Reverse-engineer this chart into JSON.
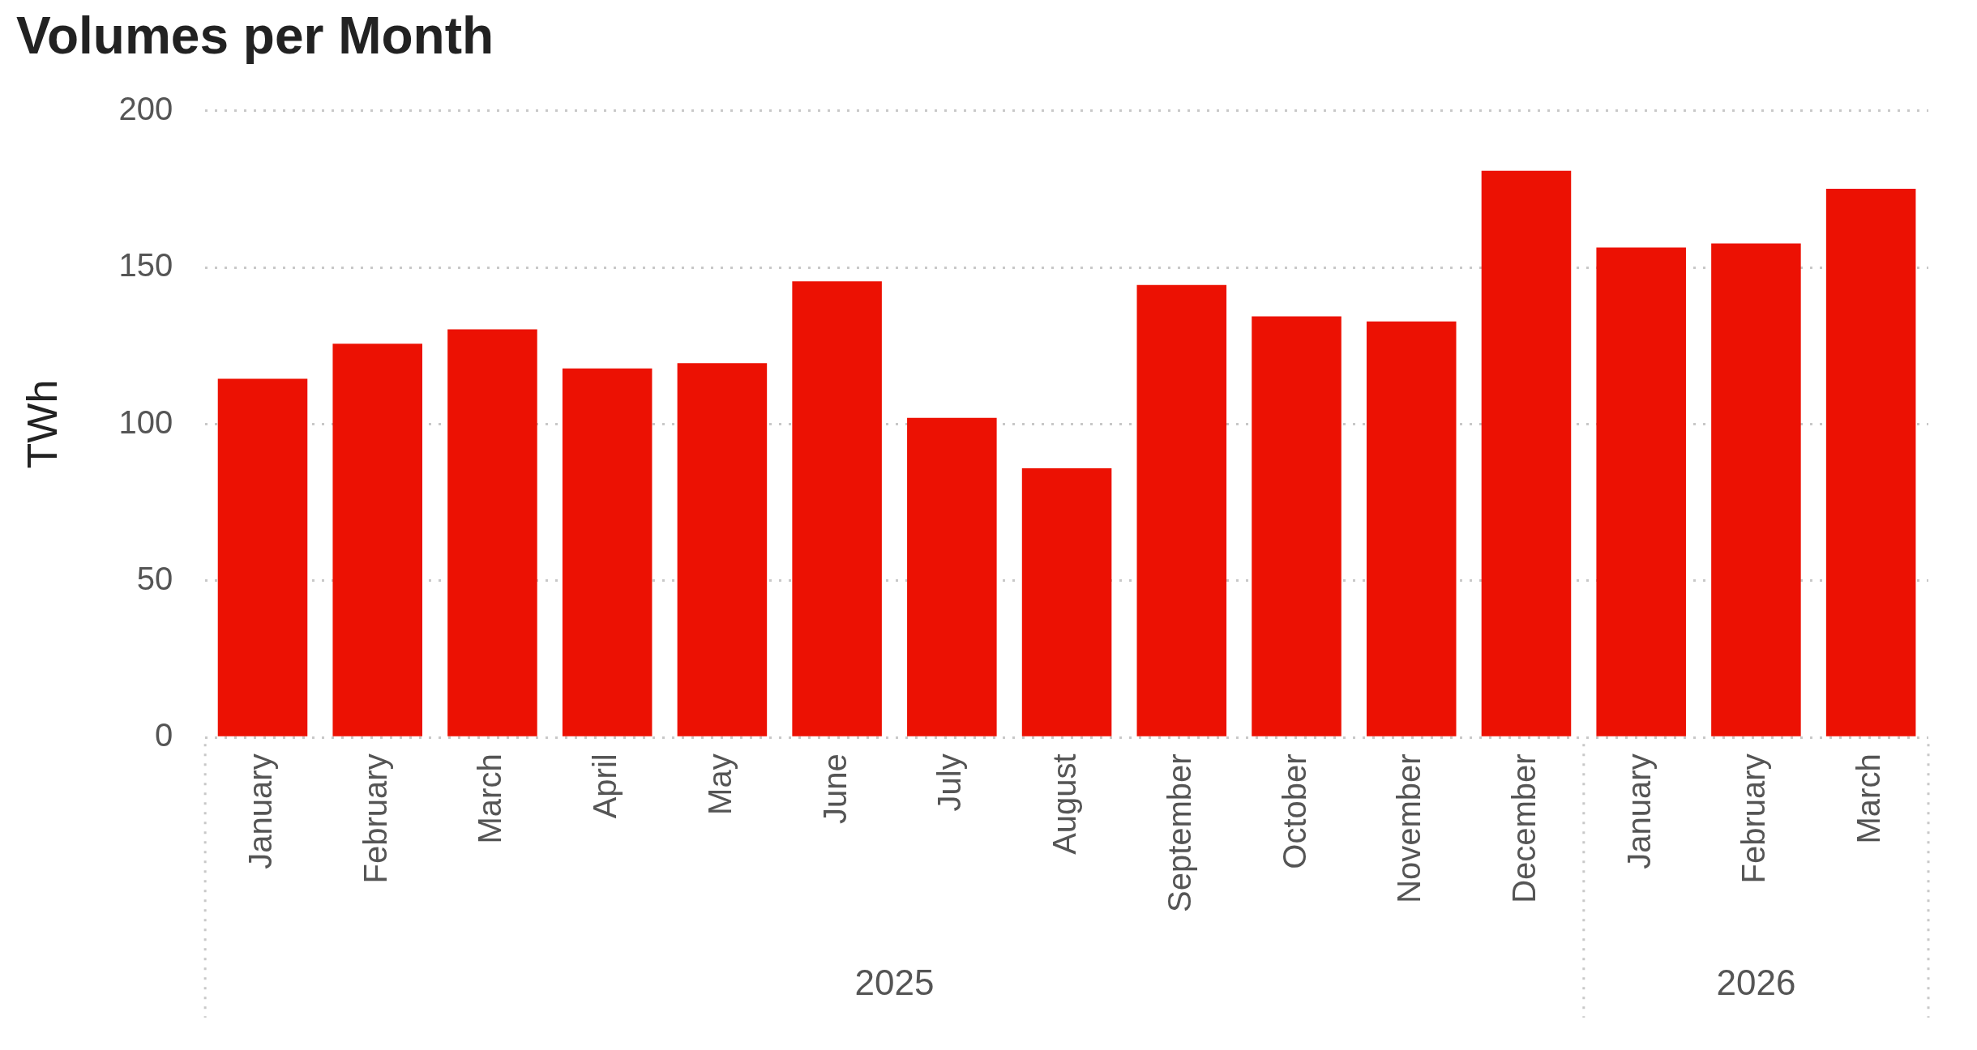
{
  "chart_data": {
    "type": "bar",
    "title": "Volumes per Month",
    "ylabel": "TWh",
    "categories": [
      "January",
      "February",
      "March",
      "April",
      "May",
      "June",
      "July",
      "August",
      "September",
      "October",
      "November",
      "December",
      "January",
      "February",
      "March"
    ],
    "values": [
      114.5,
      125.7,
      130.3,
      117.8,
      119.5,
      145.6,
      102,
      85.9,
      144.4,
      134.4,
      132.8,
      180.9,
      156.4,
      157.7,
      175.1
    ],
    "color": "#ec1103",
    "ylim": [
      0,
      200
    ],
    "yticks": [
      0,
      50,
      100,
      150,
      200
    ],
    "grid": "y",
    "annotations": [
      "2025",
      "2026"
    ]
  }
}
